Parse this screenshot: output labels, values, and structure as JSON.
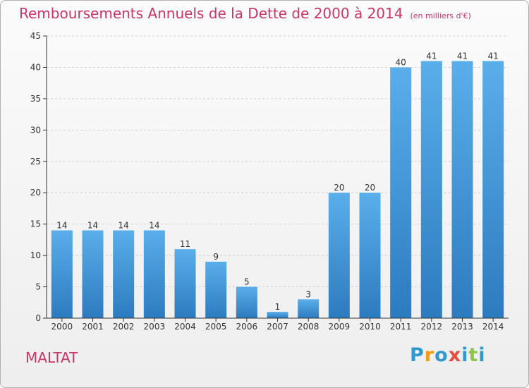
{
  "header": {
    "title": "Remboursements Annuels de la Dette de 2000 à 2014",
    "subtitle": "(en milliers d'€)"
  },
  "footer": {
    "commune": "MALTAT",
    "logo": {
      "letters": [
        "P",
        "r",
        "o",
        "x",
        "i",
        "t",
        "i"
      ],
      "colors": [
        "#3399cc",
        "#f39c12",
        "#3399cc",
        "#e74c3c",
        "#3399cc",
        "#8dc63f",
        "#3399cc"
      ]
    }
  },
  "colors": {
    "title": "#cc3366",
    "bar_top": "#5aaeea",
    "bar_bottom": "#2c7bbf",
    "axis": "#333333",
    "grid": "#d0d0d0"
  },
  "chart_data": {
    "type": "bar",
    "categories": [
      "2000",
      "2001",
      "2002",
      "2003",
      "2004",
      "2005",
      "2006",
      "2007",
      "2008",
      "2009",
      "2010",
      "2011",
      "2012",
      "2013",
      "2014"
    ],
    "values": [
      14,
      14,
      14,
      14,
      11,
      9,
      5,
      1,
      3,
      20,
      20,
      40,
      41,
      41,
      41
    ],
    "data_labels": [
      "14",
      "14",
      "14",
      "14",
      "11",
      "9",
      "5",
      "1",
      "3",
      "20",
      "20",
      "40",
      "41",
      "41",
      "41"
    ],
    "yticks": [
      "0",
      "5",
      "10",
      "15",
      "20",
      "25",
      "30",
      "35",
      "40",
      "45"
    ],
    "ylim": [
      0,
      45
    ],
    "grid": true,
    "legend": "none"
  }
}
